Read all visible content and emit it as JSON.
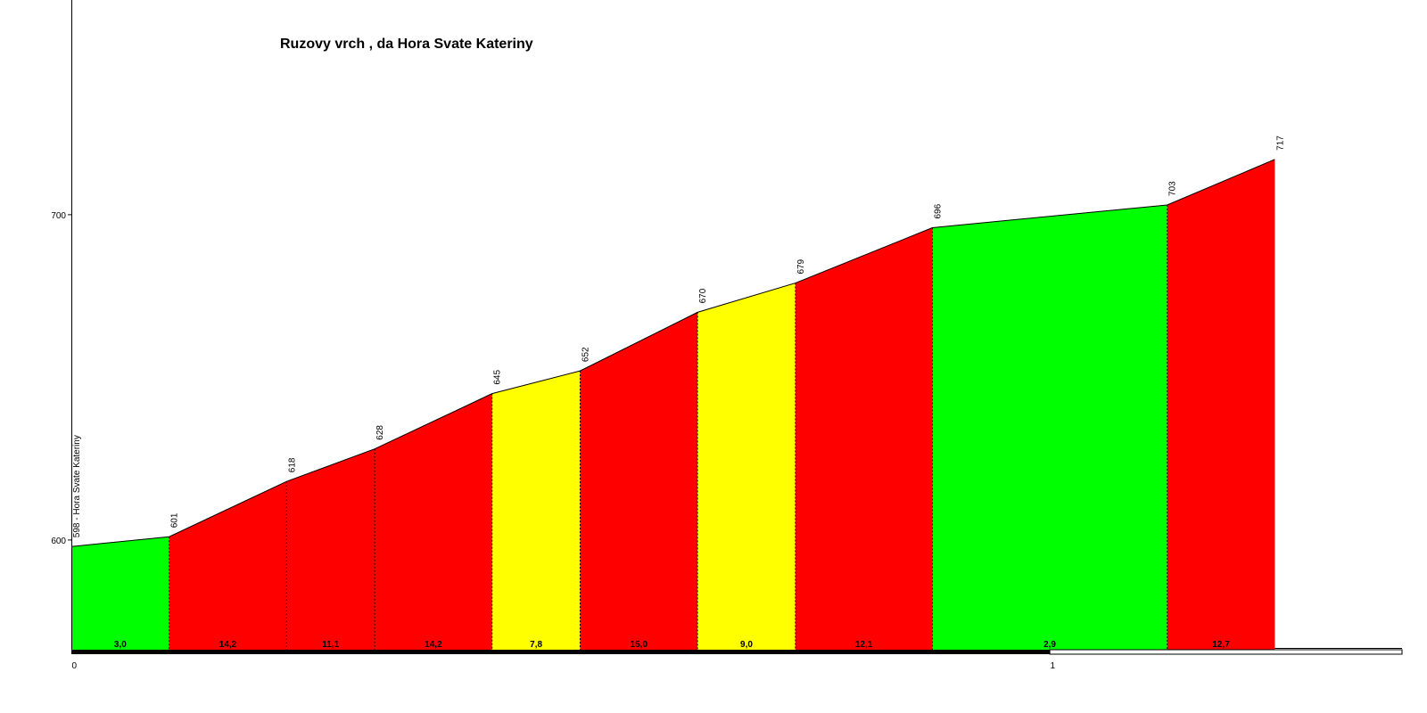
{
  "chart_data": {
    "type": "area",
    "title": "Ruzovy vrch , da Hora Svate Kateriny",
    "xlabel": "",
    "ylabel": "",
    "start_label": "598 - Hora Svate Kateriny",
    "y_ticks": [
      "600",
      "700"
    ],
    "x_ticks": [
      "0",
      "1"
    ],
    "x": [
      0,
      0.1,
      0.22,
      0.31,
      0.43,
      0.52,
      0.64,
      0.74,
      0.88,
      1.12,
      1.23
    ],
    "elevation": [
      598,
      601,
      618,
      628,
      645,
      652,
      670,
      679,
      696,
      703,
      717
    ],
    "point_labels": [
      "",
      "601",
      "618",
      "628",
      "645",
      "652",
      "670",
      "679",
      "696",
      "703",
      "717"
    ],
    "segments": [
      {
        "gradient": "3,0",
        "color": "#00ff00"
      },
      {
        "gradient": "14,2",
        "color": "#ff0000"
      },
      {
        "gradient": "11,1",
        "color": "#ff0000"
      },
      {
        "gradient": "14,2",
        "color": "#ff0000"
      },
      {
        "gradient": "7,8",
        "color": "#ffff00"
      },
      {
        "gradient": "15,0",
        "color": "#ff0000"
      },
      {
        "gradient": "9,0",
        "color": "#ffff00"
      },
      {
        "gradient": "12,1",
        "color": "#ff0000"
      },
      {
        "gradient": "2,9",
        "color": "#00ff00"
      },
      {
        "gradient": "12,7",
        "color": "#ff0000"
      }
    ],
    "ylim": [
      566,
      766
    ],
    "xlim": [
      0,
      1.36
    ],
    "grid": false,
    "legend": "none"
  }
}
